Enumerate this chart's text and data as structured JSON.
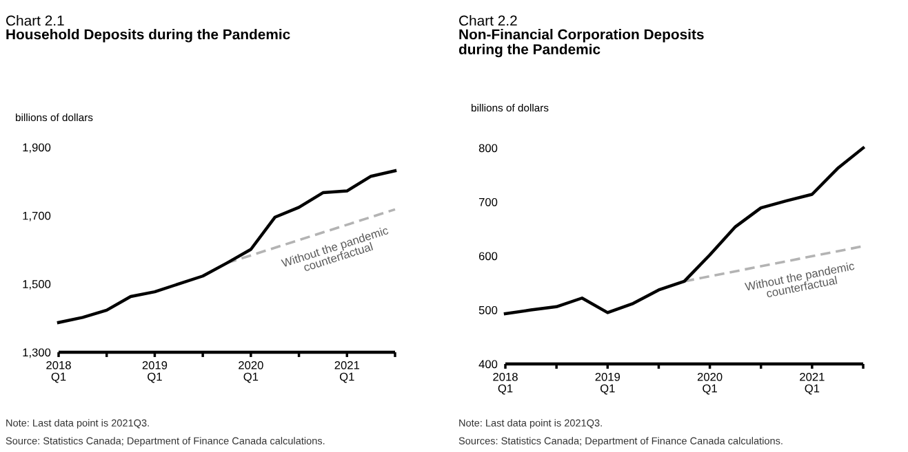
{
  "chart_data": [
    {
      "type": "line",
      "subtitle": "Chart 2.1",
      "title": "Household Deposits during the Pandemic",
      "ylabel": "billions of dollars",
      "categories": [
        "2018\nQ1",
        null,
        null,
        null,
        "2019\nQ1",
        null,
        null,
        null,
        "2020\nQ1",
        null,
        null,
        null,
        "2021\nQ1",
        null,
        null
      ],
      "series": [
        {
          "color": "#000000",
          "line_style": "solid",
          "values": [
            1387,
            1402,
            1423,
            1463,
            1477,
            1500,
            1523,
            1561,
            1601,
            1695,
            1724,
            1767,
            1772,
            1815,
            1831
          ]
        },
        {
          "name": "Without the pandemic\ncounterfactual",
          "color": "#b3b3b3",
          "line_style": "dashed",
          "values": [
            null,
            null,
            null,
            null,
            null,
            null,
            null,
            1561,
            null,
            null,
            null,
            null,
            null,
            null,
            1718
          ]
        }
      ],
      "ylim": [
        1300,
        1900
      ],
      "yticks": [
        {
          "value": 1300,
          "label": "1,300"
        },
        {
          "value": 1500,
          "label": "1,500"
        },
        {
          "value": 1700,
          "label": "1,700"
        },
        {
          "value": 1900,
          "label": "1,900"
        }
      ],
      "annotations": [
        "Note: Last data point is 2021Q3.",
        "Source: Statistics Canada; Department of Finance Canada calculations."
      ]
    },
    {
      "type": "line",
      "subtitle": "Chart 2.2",
      "title": "Non-Financial Corporation Deposits\nduring the Pandemic",
      "ylabel": "billions of dollars",
      "categories": [
        "2018\nQ1",
        null,
        null,
        null,
        "2019\nQ1",
        null,
        null,
        null,
        "2020\nQ1",
        null,
        null,
        null,
        "2021\nQ1",
        null,
        null
      ],
      "series": [
        {
          "color": "#000000",
          "line_style": "solid",
          "values": [
            493,
            500,
            506,
            522,
            495,
            512,
            537,
            553,
            602,
            654,
            689,
            702,
            714,
            762,
            800
          ]
        },
        {
          "name": "Without the pandemic\ncounterfactual",
          "color": "#b3b3b3",
          "line_style": "dashed",
          "values": [
            null,
            null,
            null,
            null,
            null,
            null,
            null,
            553,
            null,
            null,
            null,
            null,
            null,
            null,
            618
          ]
        }
      ],
      "ylim": [
        400,
        800
      ],
      "yticks": [
        400,
        500,
        600,
        700,
        800
      ],
      "annotations": [
        "Note: Last data point is 2021Q3.",
        "Sources: Statistics Canada; Department of Finance Canada calculations."
      ]
    }
  ]
}
